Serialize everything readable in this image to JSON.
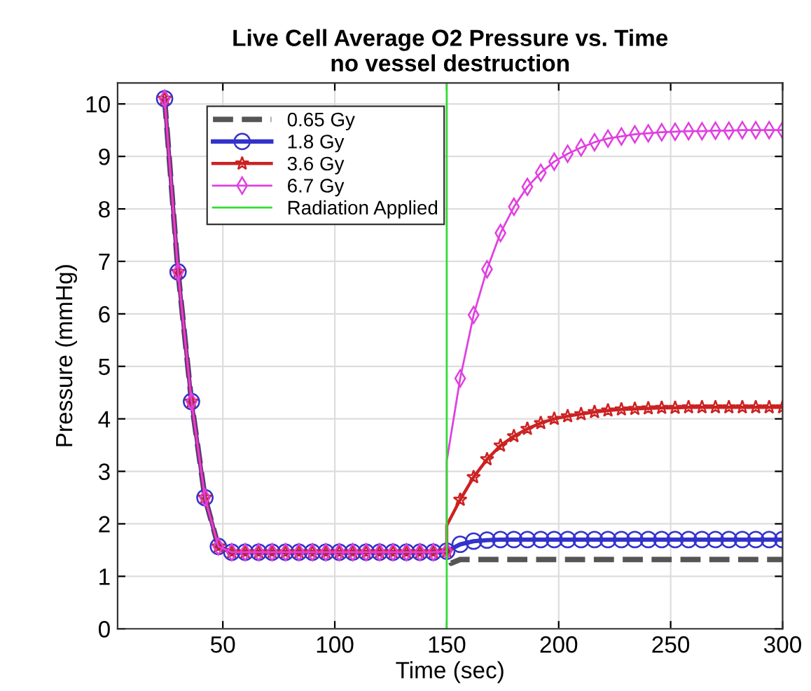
{
  "chart_data": {
    "type": "line",
    "title": "Live Cell Average O2 Pressure vs. Time",
    "subtitle": "no vessel destruction",
    "xlabel": "Time (sec)",
    "ylabel": "Pressure (mmHg)",
    "xlim": [
      3,
      300
    ],
    "xticks": [
      50,
      100,
      150,
      200,
      250,
      300
    ],
    "ylim": [
      0,
      10.4
    ],
    "yticks": [
      0,
      1,
      2,
      3,
      4,
      5,
      6,
      7,
      8,
      9,
      10
    ],
    "grid": true,
    "legend": "top left",
    "series": [
      {
        "name": "0.65 Gy",
        "color": "#555555",
        "line_style": "dashed",
        "marker": "none",
        "x": [
          24,
          30,
          36,
          42,
          48,
          54,
          60,
          66,
          72,
          78,
          84,
          90,
          96,
          102,
          108,
          114,
          120,
          126,
          132,
          138,
          144,
          150,
          152,
          156,
          162,
          168,
          174,
          180,
          186,
          192,
          198,
          204,
          210,
          216,
          222,
          228,
          234,
          240,
          246,
          252,
          258,
          264,
          270,
          276,
          282,
          288,
          294,
          300
        ],
        "values": [
          10.1,
          6.8,
          4.33,
          2.5,
          1.57,
          1.46,
          1.46,
          1.46,
          1.46,
          1.46,
          1.46,
          1.46,
          1.46,
          1.46,
          1.46,
          1.46,
          1.46,
          1.46,
          1.46,
          1.46,
          1.46,
          1.48,
          1.25,
          1.32,
          1.32,
          1.32,
          1.32,
          1.32,
          1.32,
          1.32,
          1.32,
          1.32,
          1.32,
          1.32,
          1.32,
          1.32,
          1.32,
          1.32,
          1.32,
          1.32,
          1.32,
          1.32,
          1.32,
          1.32,
          1.32,
          1.32,
          1.32,
          1.32
        ]
      },
      {
        "name": "1.8 Gy",
        "color": "#3333cc",
        "line_style": "solid",
        "marker": "circle",
        "x": [
          24,
          30,
          36,
          42,
          48,
          54,
          60,
          66,
          72,
          78,
          84,
          90,
          96,
          102,
          108,
          114,
          120,
          126,
          132,
          138,
          144,
          150,
          156,
          162,
          168,
          174,
          180,
          186,
          192,
          198,
          204,
          210,
          216,
          222,
          228,
          234,
          240,
          246,
          252,
          258,
          264,
          270,
          276,
          282,
          288,
          294,
          300
        ],
        "values": [
          10.1,
          6.8,
          4.33,
          2.5,
          1.57,
          1.46,
          1.46,
          1.46,
          1.46,
          1.46,
          1.46,
          1.46,
          1.46,
          1.46,
          1.46,
          1.46,
          1.46,
          1.46,
          1.46,
          1.46,
          1.46,
          1.48,
          1.61,
          1.67,
          1.69,
          1.7,
          1.7,
          1.7,
          1.7,
          1.7,
          1.7,
          1.7,
          1.7,
          1.7,
          1.7,
          1.7,
          1.7,
          1.7,
          1.7,
          1.7,
          1.7,
          1.7,
          1.7,
          1.7,
          1.7,
          1.7,
          1.7
        ]
      },
      {
        "name": "3.6 Gy",
        "color": "#cc2222",
        "line_style": "solid",
        "marker": "star",
        "x": [
          24,
          30,
          36,
          42,
          48,
          54,
          60,
          66,
          72,
          78,
          84,
          90,
          96,
          102,
          108,
          114,
          120,
          126,
          132,
          138,
          144,
          150,
          150,
          156,
          162,
          168,
          174,
          180,
          186,
          192,
          198,
          204,
          210,
          216,
          222,
          228,
          234,
          240,
          246,
          252,
          258,
          264,
          270,
          276,
          282,
          288,
          294,
          300
        ],
        "values": [
          10.1,
          6.8,
          4.33,
          2.5,
          1.57,
          1.46,
          1.46,
          1.46,
          1.46,
          1.46,
          1.46,
          1.46,
          1.46,
          1.46,
          1.46,
          1.46,
          1.46,
          1.46,
          1.46,
          1.46,
          1.46,
          1.48,
          1.97,
          2.46,
          2.89,
          3.23,
          3.49,
          3.67,
          3.81,
          3.92,
          4.0,
          4.05,
          4.09,
          4.13,
          4.16,
          4.18,
          4.19,
          4.2,
          4.21,
          4.21,
          4.22,
          4.22,
          4.22,
          4.22,
          4.22,
          4.22,
          4.22,
          4.22
        ]
      },
      {
        "name": "6.7 Gy",
        "color": "#e040e0",
        "line_style": "solid",
        "marker": "diamond",
        "x": [
          24,
          30,
          36,
          42,
          48,
          54,
          60,
          66,
          72,
          78,
          84,
          90,
          96,
          102,
          108,
          114,
          120,
          126,
          132,
          138,
          144,
          150,
          150,
          156,
          162,
          168,
          174,
          180,
          186,
          192,
          198,
          204,
          210,
          216,
          222,
          228,
          234,
          240,
          246,
          252,
          258,
          264,
          270,
          276,
          282,
          288,
          294,
          300
        ],
        "values": [
          10.1,
          6.8,
          4.33,
          2.5,
          1.57,
          1.46,
          1.46,
          1.46,
          1.46,
          1.46,
          1.46,
          1.46,
          1.46,
          1.46,
          1.46,
          1.46,
          1.46,
          1.46,
          1.46,
          1.46,
          1.46,
          1.48,
          3.2,
          4.77,
          5.98,
          6.85,
          7.54,
          8.04,
          8.42,
          8.69,
          8.9,
          9.05,
          9.17,
          9.27,
          9.34,
          9.38,
          9.42,
          9.44,
          9.46,
          9.47,
          9.48,
          9.48,
          9.49,
          9.49,
          9.5,
          9.5,
          9.5,
          9.5
        ]
      }
    ],
    "ref_lines": [
      {
        "axis": "x",
        "value": 150,
        "label": "Radiation Applied",
        "color": "#33dd33",
        "line_style": "solid"
      }
    ]
  }
}
